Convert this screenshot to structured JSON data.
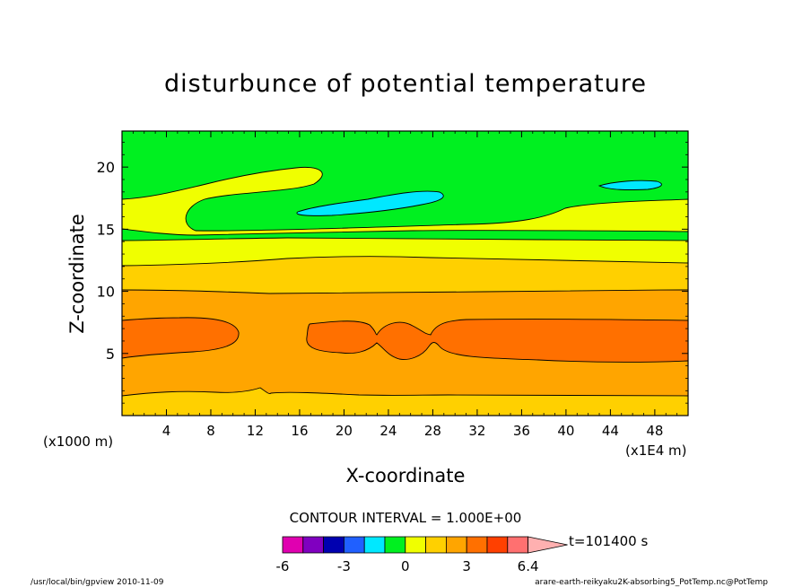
{
  "chart_data": {
    "type": "contour",
    "title": "disturbunce of potential temperature",
    "xlabel": "X-coordinate",
    "ylabel": "Z-coordinate",
    "x_unit": "(x1E4 m)",
    "z_unit": "(x1000 m)",
    "xlim": [
      0,
      51
    ],
    "ylim": [
      0,
      22.9
    ],
    "x_ticks": [
      "4",
      "8",
      "12",
      "16",
      "20",
      "24",
      "28",
      "32",
      "36",
      "40",
      "44",
      "48"
    ],
    "y_ticks": [
      "5",
      "10",
      "15",
      "20"
    ],
    "contour_interval_text": "CONTOUR INTERVAL = 1.000E+00",
    "time_text": "t=101400 s",
    "colorbar": {
      "labels": [
        "-6",
        "-3",
        "0",
        "3",
        "6.4"
      ],
      "colors": [
        "#e000b0",
        "#8000c0",
        "#0000b0",
        "#2060ff",
        "#00e8ff",
        "#00f020",
        "#f0ff00",
        "#ffd000",
        "#ffa500",
        "#ff7000",
        "#ff4000",
        "#ff7070",
        "#ffb0b0"
      ]
    },
    "bands_bottom_to_top": [
      {
        "level": "2-3",
        "color": "#ffd000"
      },
      {
        "level": "3-4",
        "color": "#ffa500"
      },
      {
        "level": "4-5",
        "color": "#ff7000"
      },
      {
        "level": "3-4",
        "color": "#ffa500"
      },
      {
        "level": "2-3",
        "color": "#ffd000"
      },
      {
        "level": "1-2",
        "color": "#f0ff00"
      },
      {
        "level": "0-1",
        "color": "#00f020"
      },
      {
        "level": "1-2",
        "color": "#f0ff00"
      },
      {
        "level": "0-1",
        "color": "#00f020"
      }
    ],
    "cyan_blobs": 2,
    "grid": false
  },
  "footer": {
    "left": "/usr/local/bin/gpview  2010-11-09",
    "right": "arare-earth-reikyaku2K-absorbing5_PotTemp.nc@PotTemp"
  }
}
